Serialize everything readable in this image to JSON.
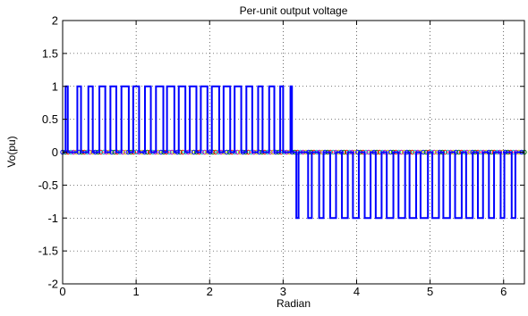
{
  "chart_data": {
    "type": "line",
    "title": "Per-unit output voltage",
    "xlabel": "Radian",
    "ylabel": "Vo(pu)",
    "xlim": [
      0,
      6.2832
    ],
    "ylim": [
      -2,
      2
    ],
    "grid": true,
    "xticks": [
      "0",
      "1",
      "2",
      "3",
      "4",
      "5",
      "6"
    ],
    "yticks": [
      "-2",
      "-1.5",
      "-1",
      "-0.5",
      "0",
      "0.5",
      "1",
      "1.5",
      "2"
    ],
    "series": [
      {
        "color": "#0000ff",
        "positive_pulses": [
          [
            0.04,
            0.07
          ],
          [
            0.2,
            0.25
          ],
          [
            0.35,
            0.41
          ],
          [
            0.5,
            0.58
          ],
          [
            0.65,
            0.73
          ],
          [
            0.8,
            0.9
          ],
          [
            0.96,
            1.04
          ],
          [
            1.12,
            1.2
          ],
          [
            1.27,
            1.37
          ],
          [
            1.42,
            1.52
          ],
          [
            1.58,
            1.67
          ],
          [
            1.73,
            1.82
          ],
          [
            1.88,
            1.97
          ],
          [
            2.03,
            2.13
          ],
          [
            2.19,
            2.28
          ],
          [
            2.34,
            2.43
          ],
          [
            2.5,
            2.58
          ],
          [
            2.66,
            2.72
          ],
          [
            2.81,
            2.88
          ],
          [
            2.96,
            3.0
          ],
          [
            3.1,
            3.12
          ]
        ],
        "negative_pulses": [
          [
            3.18,
            3.21
          ],
          [
            3.34,
            3.39
          ],
          [
            3.49,
            3.55
          ],
          [
            3.64,
            3.72
          ],
          [
            3.8,
            3.88
          ],
          [
            3.95,
            4.03
          ],
          [
            4.11,
            4.19
          ],
          [
            4.26,
            4.34
          ],
          [
            4.41,
            4.5
          ],
          [
            4.57,
            4.66
          ],
          [
            4.72,
            4.81
          ],
          [
            4.87,
            4.97
          ],
          [
            5.03,
            5.12
          ],
          [
            5.18,
            5.27
          ],
          [
            5.34,
            5.43
          ],
          [
            5.49,
            5.58
          ],
          [
            5.65,
            5.72
          ],
          [
            5.8,
            5.87
          ],
          [
            5.96,
            6.01
          ],
          [
            6.11,
            6.16
          ]
        ]
      }
    ],
    "baseline_marker_colors": [
      "#0000ff",
      "#008000",
      "#ff0000",
      "#00bfbf",
      "#bf00bf",
      "#bfbf00"
    ]
  }
}
